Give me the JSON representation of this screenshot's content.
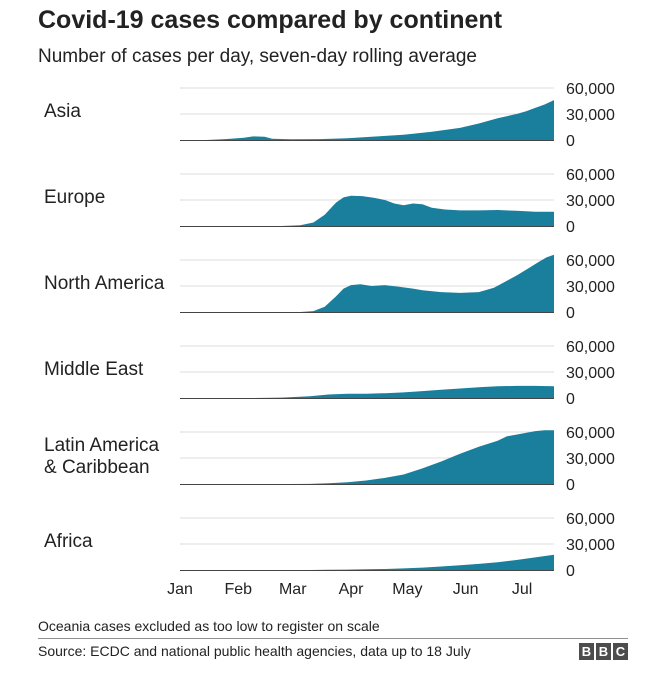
{
  "header": {
    "title": "Covid-19 cases compared by continent",
    "subtitle": "Number of cases per day, seven-day rolling average"
  },
  "footer": {
    "note": "Oceania cases excluded as too low to register on scale",
    "source": "Source: ECDC and national public health agencies, data up to 18 July",
    "logo_letters": [
      "B",
      "B",
      "C"
    ]
  },
  "colors": {
    "area": "#1a7f9c",
    "grid": "#dcdcdc",
    "baseline": "#444444",
    "text": "#222222"
  },
  "chart_data": {
    "type": "area",
    "title": "Covid-19 cases compared by continent",
    "subtitle": "Number of cases per day, seven-day rolling average",
    "x_unit": "day of year 2020 (1 = 1 Jan)",
    "x_range": [
      1,
      200
    ],
    "x_ticks": [
      {
        "label": "Jan",
        "day": 1
      },
      {
        "label": "Feb",
        "day": 32
      },
      {
        "label": "Mar",
        "day": 61
      },
      {
        "label": "Apr",
        "day": 92
      },
      {
        "label": "May",
        "day": 122
      },
      {
        "label": "Jun",
        "day": 153
      },
      {
        "label": "Jul",
        "day": 183
      }
    ],
    "y_range": [
      0,
      60000
    ],
    "y_ticks": [
      {
        "label": "0",
        "value": 0
      },
      {
        "label": "30,000",
        "value": 30000
      },
      {
        "label": "60,000",
        "value": 60000
      }
    ],
    "grid": true,
    "series": [
      {
        "name": "Asia",
        "label_lines": [
          "Asia"
        ],
        "points": [
          [
            1,
            0
          ],
          [
            15,
            0
          ],
          [
            25,
            1000
          ],
          [
            35,
            2500
          ],
          [
            40,
            4200
          ],
          [
            46,
            3800
          ],
          [
            50,
            1500
          ],
          [
            60,
            800
          ],
          [
            75,
            1000
          ],
          [
            90,
            2000
          ],
          [
            105,
            4000
          ],
          [
            120,
            6000
          ],
          [
            135,
            9500
          ],
          [
            150,
            14000
          ],
          [
            160,
            19000
          ],
          [
            170,
            25000
          ],
          [
            180,
            30000
          ],
          [
            185,
            33000
          ],
          [
            190,
            37000
          ],
          [
            195,
            41000
          ],
          [
            200,
            46000
          ]
        ]
      },
      {
        "name": "Europe",
        "label_lines": [
          "Europe"
        ],
        "points": [
          [
            1,
            0
          ],
          [
            55,
            0
          ],
          [
            65,
            800
          ],
          [
            72,
            4000
          ],
          [
            78,
            13000
          ],
          [
            84,
            27000
          ],
          [
            88,
            33000
          ],
          [
            92,
            35000
          ],
          [
            98,
            34500
          ],
          [
            104,
            32500
          ],
          [
            110,
            30000
          ],
          [
            115,
            26000
          ],
          [
            120,
            24000
          ],
          [
            125,
            26000
          ],
          [
            130,
            25000
          ],
          [
            135,
            21000
          ],
          [
            142,
            19000
          ],
          [
            150,
            18000
          ],
          [
            160,
            18000
          ],
          [
            170,
            18500
          ],
          [
            180,
            17500
          ],
          [
            190,
            16500
          ],
          [
            200,
            16500
          ]
        ]
      },
      {
        "name": "North America",
        "label_lines": [
          "North America"
        ],
        "points": [
          [
            1,
            0
          ],
          [
            65,
            0
          ],
          [
            72,
            1000
          ],
          [
            78,
            6000
          ],
          [
            84,
            18000
          ],
          [
            88,
            27000
          ],
          [
            92,
            31000
          ],
          [
            97,
            32000
          ],
          [
            103,
            30000
          ],
          [
            110,
            31000
          ],
          [
            118,
            29000
          ],
          [
            125,
            27000
          ],
          [
            130,
            25000
          ],
          [
            140,
            23000
          ],
          [
            150,
            22000
          ],
          [
            160,
            23000
          ],
          [
            168,
            28000
          ],
          [
            174,
            35000
          ],
          [
            180,
            42000
          ],
          [
            186,
            50000
          ],
          [
            192,
            58000
          ],
          [
            196,
            63000
          ],
          [
            200,
            66000
          ]
        ]
      },
      {
        "name": "Middle East",
        "label_lines": [
          "Middle East"
        ],
        "points": [
          [
            1,
            0
          ],
          [
            40,
            0
          ],
          [
            55,
            500
          ],
          [
            70,
            2000
          ],
          [
            80,
            4000
          ],
          [
            90,
            5000
          ],
          [
            100,
            5000
          ],
          [
            110,
            5500
          ],
          [
            120,
            6500
          ],
          [
            130,
            8000
          ],
          [
            140,
            9500
          ],
          [
            150,
            11000
          ],
          [
            160,
            12500
          ],
          [
            170,
            13500
          ],
          [
            180,
            14000
          ],
          [
            190,
            14000
          ],
          [
            200,
            13500
          ]
        ]
      },
      {
        "name": "Latin America & Caribbean",
        "label_lines": [
          "Latin America",
          "& Caribbean"
        ],
        "points": [
          [
            1,
            0
          ],
          [
            60,
            0
          ],
          [
            70,
            100
          ],
          [
            80,
            800
          ],
          [
            90,
            2000
          ],
          [
            100,
            4000
          ],
          [
            110,
            7000
          ],
          [
            120,
            11000
          ],
          [
            130,
            18000
          ],
          [
            140,
            26000
          ],
          [
            150,
            35000
          ],
          [
            160,
            43000
          ],
          [
            170,
            50000
          ],
          [
            175,
            55000
          ],
          [
            180,
            57000
          ],
          [
            185,
            59000
          ],
          [
            190,
            61000
          ],
          [
            195,
            62000
          ],
          [
            200,
            62000
          ]
        ]
      },
      {
        "name": "Africa",
        "label_lines": [
          "Africa"
        ],
        "points": [
          [
            1,
            0
          ],
          [
            70,
            0
          ],
          [
            80,
            200
          ],
          [
            90,
            500
          ],
          [
            100,
            800
          ],
          [
            110,
            1200
          ],
          [
            120,
            1800
          ],
          [
            130,
            2800
          ],
          [
            140,
            4000
          ],
          [
            150,
            5500
          ],
          [
            160,
            7000
          ],
          [
            170,
            9000
          ],
          [
            180,
            11500
          ],
          [
            190,
            14500
          ],
          [
            200,
            17500
          ]
        ]
      }
    ]
  }
}
